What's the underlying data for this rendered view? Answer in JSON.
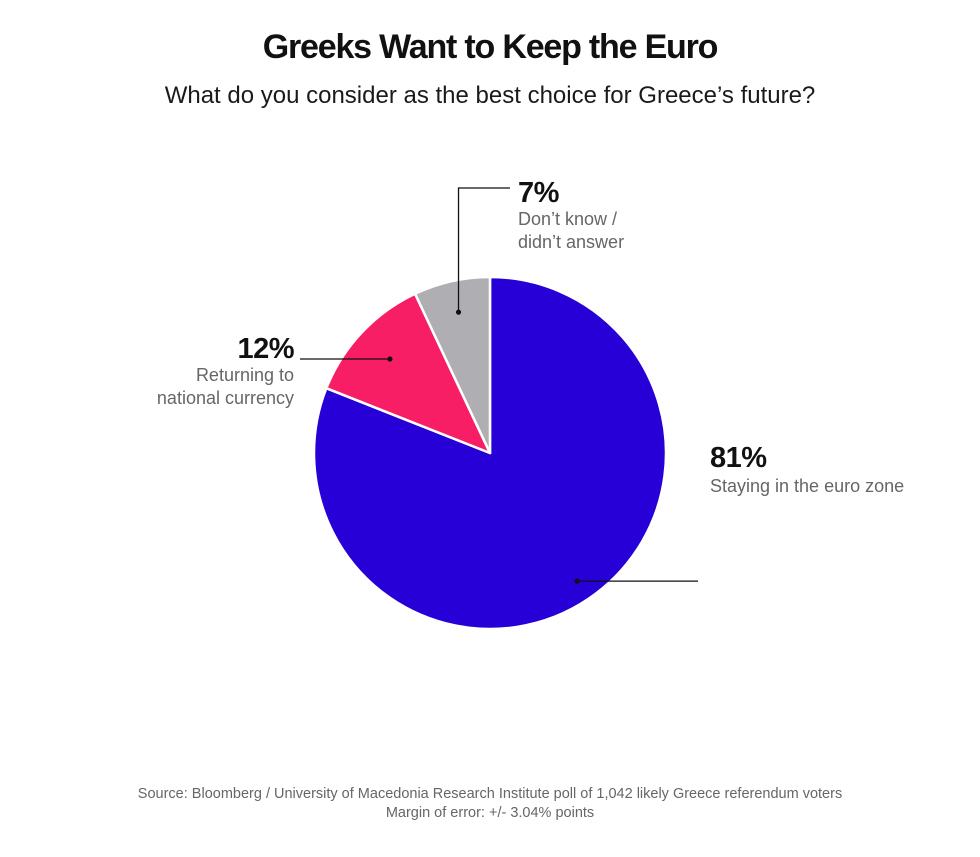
{
  "title": "Greeks Want to Keep the Euro",
  "subtitle": "What do you consider as the best choice for Greece’s future?",
  "chart_data": {
    "type": "pie",
    "title": "Greeks Want to Keep the Euro",
    "subtitle": "What do you consider as the best choice for Greece’s future?",
    "slices": [
      {
        "label_lines": [
          "Staying in the euro zone"
        ],
        "value": 81,
        "value_label": "81%",
        "color": "#2600d6"
      },
      {
        "label_lines": [
          "Returning to",
          "national currency"
        ],
        "value": 12,
        "value_label": "12%",
        "color": "#f71e66"
      },
      {
        "label_lines": [
          "Don’t know /",
          "didn’t answer"
        ],
        "value": 7,
        "value_label": "7%",
        "color": "#afafb3"
      }
    ],
    "start": "12 o'clock",
    "direction": "clockwise",
    "legend": "none (callout labels)"
  },
  "source": {
    "line1": "Source: Bloomberg / University of Macedonia Research Institute poll of 1,042 likely Greece referendum voters",
    "line2": "Margin of error: +/- 3.04% points"
  }
}
